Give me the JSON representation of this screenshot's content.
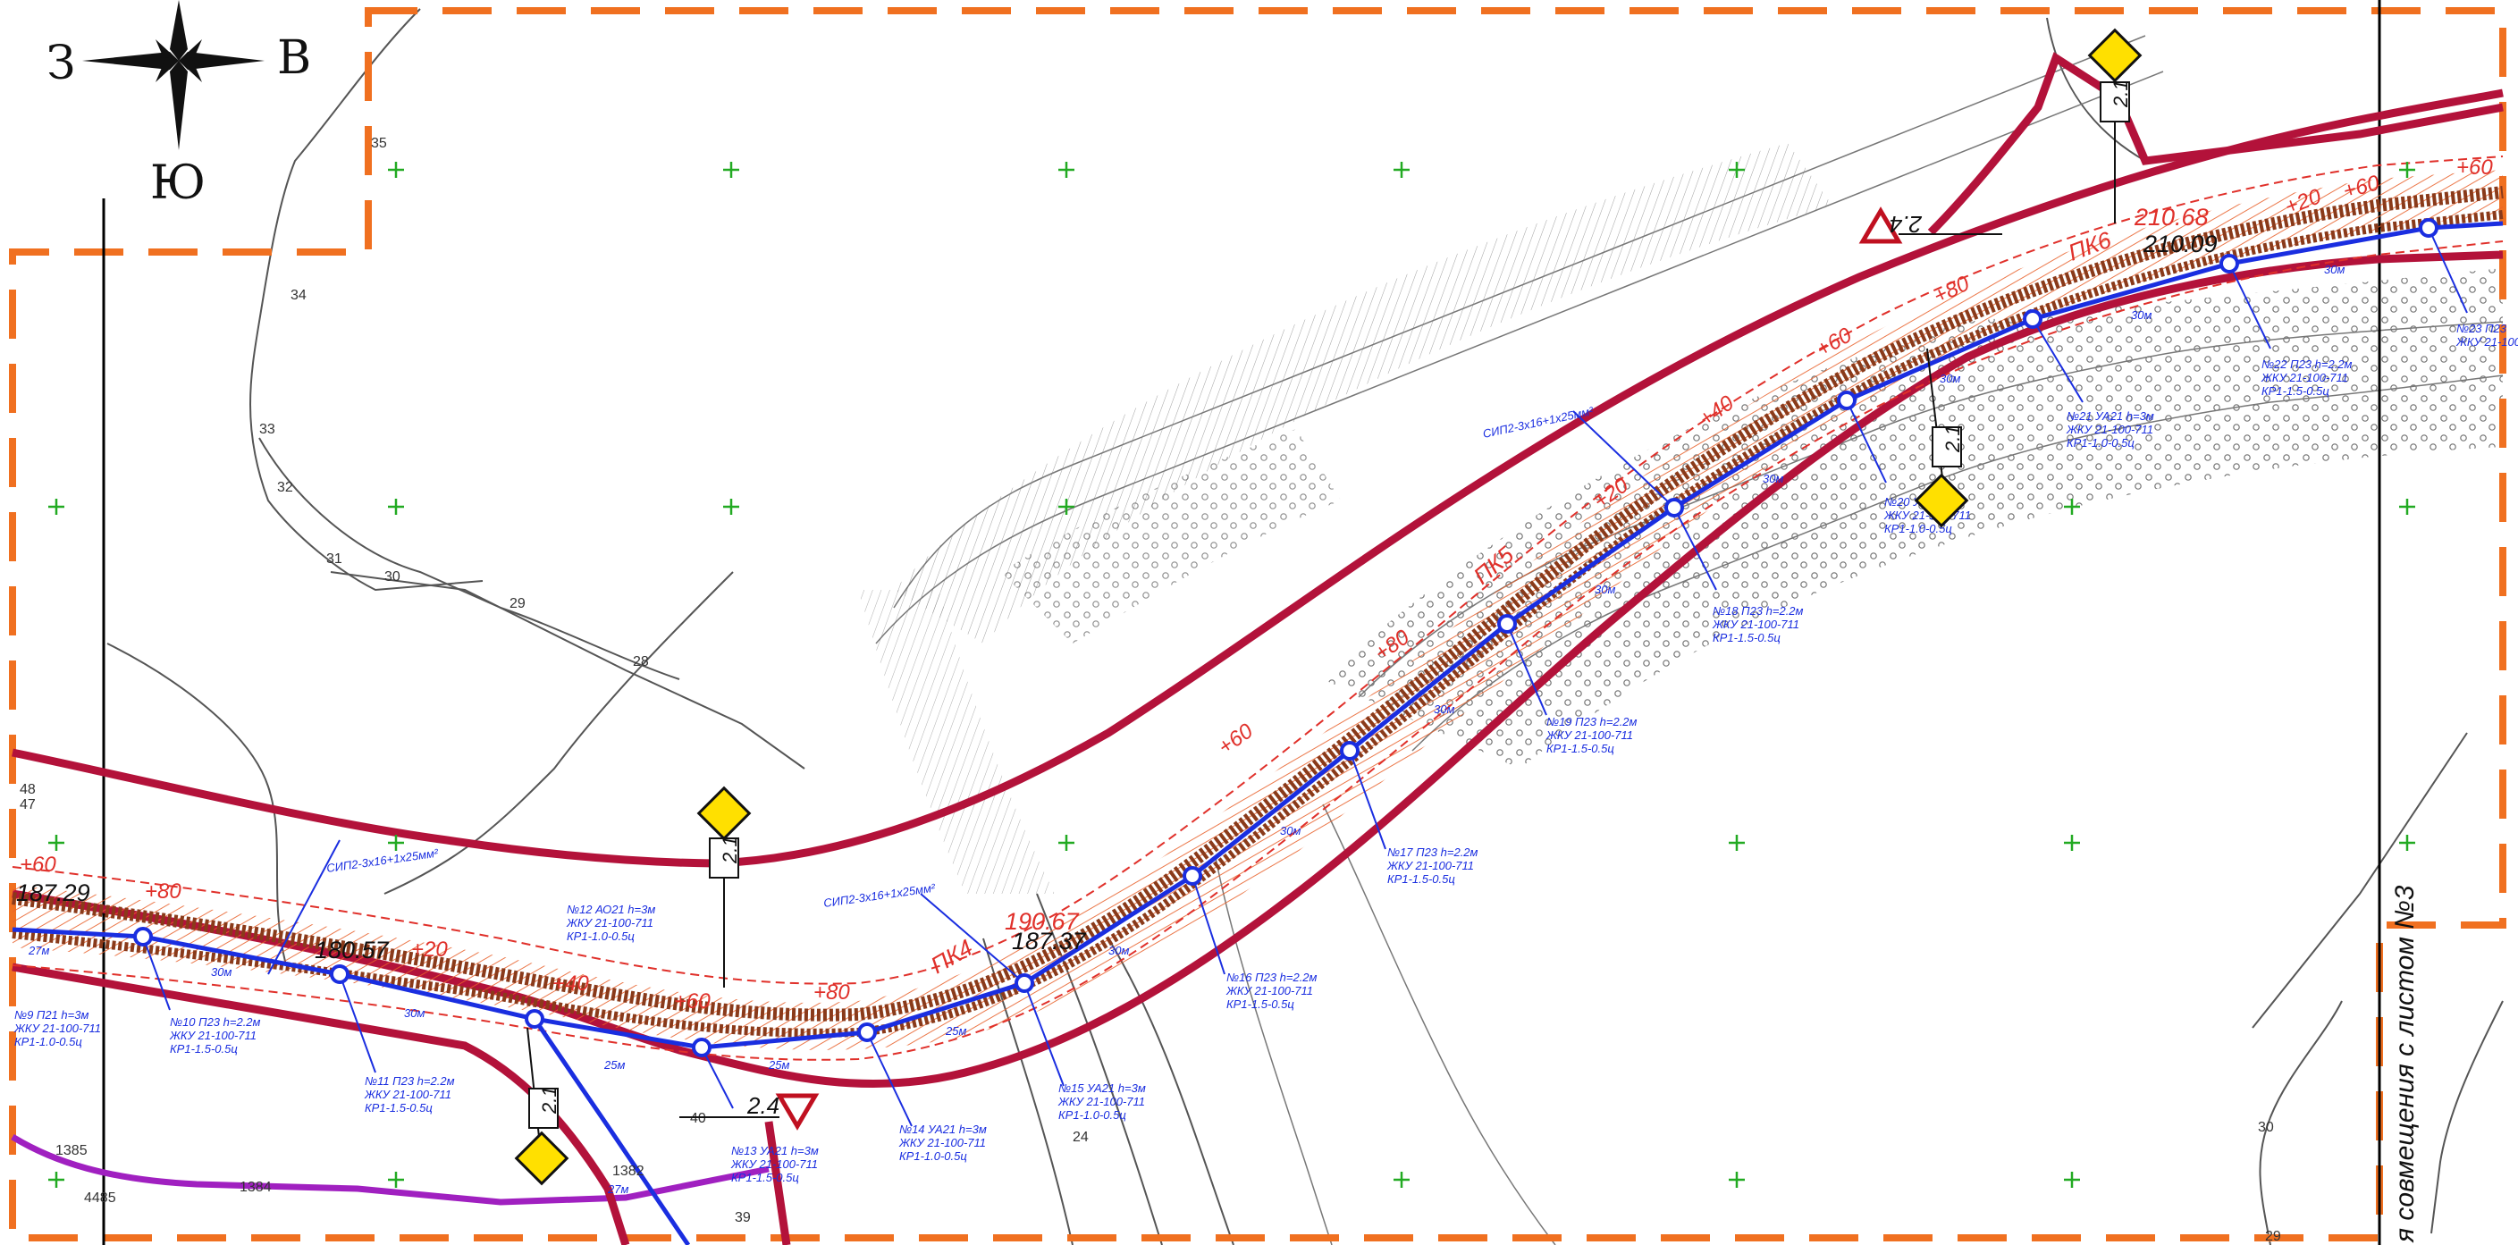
{
  "compass": {
    "north": "В",
    "west": "З",
    "south": "Ю"
  },
  "sheet_note": "я совмещения с листом №3",
  "contours": [
    "35",
    "34",
    "33",
    "32",
    "31",
    "30",
    "29",
    "28",
    "48",
    "47",
    "40",
    "39",
    "24",
    "1385",
    "1384",
    "1382",
    "4485",
    "30",
    "29"
  ],
  "elevations": {
    "e1": "187.29",
    "e2": "180.57",
    "e3": "190.67",
    "e4": "187.37",
    "e5": "210.68",
    "e6": "210.09"
  },
  "pickets": {
    "pk4": "ПК4",
    "pk5": "ПК5",
    "pk6": "ПК6"
  },
  "offsets": {
    "p60": "+60",
    "p80": "+80",
    "p20": "+20",
    "p40": "+40"
  },
  "sign_code": "2.1",
  "warn_code_a": "2.4",
  "warn_code_b": "2.4",
  "span_labels": {
    "s25": "25м",
    "s27": "27м",
    "s30": "30м"
  },
  "cables": {
    "c1": "СИП2-3х16+1х25мм²",
    "c2": "СИП2-3х16+1х25мм²",
    "c3": "СИП2-3х16+1х25мм²"
  },
  "poles": {
    "l1": "№10 П23 h=2.2м",
    "l2": "№11 П23 h=2.2м",
    "l3": "№12 АО21 h=3м",
    "l4": "№13 УА21 h=3м",
    "l5": "№14 УА21 h=3м",
    "l6": "№15 УА21 h=3м",
    "l7": "№16 П23 h=2.2м",
    "l8": "№17 П23 h=2.2м",
    "l9": "№18 П23 h=2.2м",
    "l10": "№19 П23 h=2.2м",
    "l11": "№20 УА",
    "l12": "№21 УА21 h=3м",
    "l13": "№22 П23 h=2.2м",
    "l14": "№23 П23",
    "l15": "№9 П21 h=3м"
  },
  "fixtures": {
    "lamp": "ЖКУ 21-100-711",
    "arm": "КР1-1.5-0.5ц",
    "arm2": "КР1-1.0-0.5ц"
  },
  "colors": {
    "boundary": "#f07020",
    "road_edge": "#b3123a",
    "road_fill": "#8a3a1a",
    "hatch": "#e8602a",
    "cable": "#1a2ee0",
    "contour": "#555555",
    "grid_cross": "#22aa22",
    "purple_line": "#a020c0",
    "sign_yellow": "#ffe000"
  }
}
